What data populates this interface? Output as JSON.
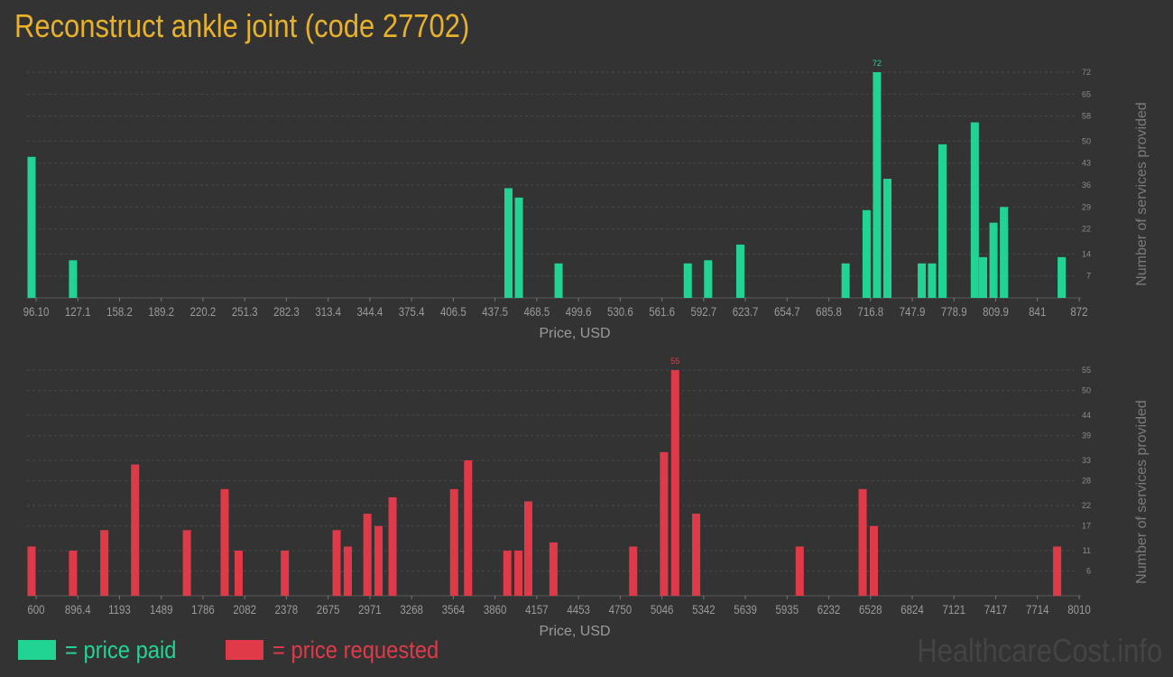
{
  "page": {
    "title": "Reconstruct ankle joint (code 27702)",
    "watermark": "HealthcareCost.info"
  },
  "legend": [
    {
      "label": "= price paid",
      "color": "#22d493"
    },
    {
      "label": "= price requested",
      "color": "#e03a49"
    }
  ],
  "chart_data": [
    {
      "type": "bar",
      "name": "price paid",
      "color": "#22d493",
      "xlabel": "Price, USD",
      "ylabel": "Number of services provided",
      "xlim": [
        96.1,
        872
      ],
      "ylim": [
        0,
        72
      ],
      "x_tick_labels": [
        "96.10",
        "127.1",
        "158.2",
        "189.2",
        "220.2",
        "251.3",
        "282.3",
        "313.4",
        "344.4",
        "375.4",
        "406.5",
        "437.5",
        "468.5",
        "499.6",
        "530.6",
        "561.6",
        "592.7",
        "623.7",
        "654.7",
        "685.8",
        "716.8",
        "747.9",
        "778.9",
        "809.9",
        "841",
        "872"
      ],
      "y_ticks": [
        7,
        14,
        22,
        29,
        36,
        43,
        50,
        58,
        65,
        72
      ],
      "max_label": "72",
      "bars": [
        {
          "x": 96.1,
          "y": 45
        },
        {
          "x": 127.1,
          "y": 12
        },
        {
          "x": 453.0,
          "y": 35
        },
        {
          "x": 460.8,
          "y": 32
        },
        {
          "x": 490.5,
          "y": 11
        },
        {
          "x": 587.2,
          "y": 11
        },
        {
          "x": 602.4,
          "y": 12
        },
        {
          "x": 626.5,
          "y": 17
        },
        {
          "x": 705.3,
          "y": 11
        },
        {
          "x": 721.0,
          "y": 28
        },
        {
          "x": 728.8,
          "y": 72
        },
        {
          "x": 736.6,
          "y": 38
        },
        {
          "x": 762.3,
          "y": 11
        },
        {
          "x": 770.0,
          "y": 11
        },
        {
          "x": 777.8,
          "y": 49
        },
        {
          "x": 802.0,
          "y": 56
        },
        {
          "x": 808.2,
          "y": 13
        },
        {
          "x": 816.0,
          "y": 24
        },
        {
          "x": 823.8,
          "y": 29
        },
        {
          "x": 867.0,
          "y": 13
        }
      ]
    },
    {
      "type": "bar",
      "name": "price requested",
      "color": "#e03a49",
      "xlabel": "Price, USD",
      "ylabel": "Number of services provided",
      "xlim": [
        600,
        8010
      ],
      "ylim": [
        0,
        55
      ],
      "x_tick_labels": [
        "600",
        "896.4",
        "1193",
        "1489",
        "1786",
        "2082",
        "2378",
        "2675",
        "2971",
        "3268",
        "3564",
        "3860",
        "4157",
        "4453",
        "4750",
        "5046",
        "5342",
        "5639",
        "5935",
        "6232",
        "6528",
        "6824",
        "7121",
        "7417",
        "7714",
        "8010"
      ],
      "y_ticks": [
        6,
        11,
        17,
        22,
        28,
        33,
        39,
        44,
        50,
        55
      ],
      "max_label": "55",
      "bars": [
        {
          "x": 600,
          "y": 12
        },
        {
          "x": 896,
          "y": 11
        },
        {
          "x": 1120,
          "y": 16
        },
        {
          "x": 1340,
          "y": 32
        },
        {
          "x": 1710,
          "y": 16
        },
        {
          "x": 1980,
          "y": 26
        },
        {
          "x": 2080,
          "y": 11
        },
        {
          "x": 2410,
          "y": 11
        },
        {
          "x": 2780,
          "y": 16
        },
        {
          "x": 2860,
          "y": 12
        },
        {
          "x": 3000,
          "y": 20
        },
        {
          "x": 3080,
          "y": 17
        },
        {
          "x": 3180,
          "y": 24
        },
        {
          "x": 3620,
          "y": 26
        },
        {
          "x": 3720,
          "y": 33
        },
        {
          "x": 4000,
          "y": 11
        },
        {
          "x": 4080,
          "y": 11
        },
        {
          "x": 4150,
          "y": 23
        },
        {
          "x": 4330,
          "y": 13
        },
        {
          "x": 4900,
          "y": 12
        },
        {
          "x": 5120,
          "y": 35
        },
        {
          "x": 5200,
          "y": 55
        },
        {
          "x": 5350,
          "y": 20
        },
        {
          "x": 6090,
          "y": 12
        },
        {
          "x": 6540,
          "y": 26
        },
        {
          "x": 6620,
          "y": 17
        },
        {
          "x": 7930,
          "y": 12
        }
      ]
    }
  ]
}
